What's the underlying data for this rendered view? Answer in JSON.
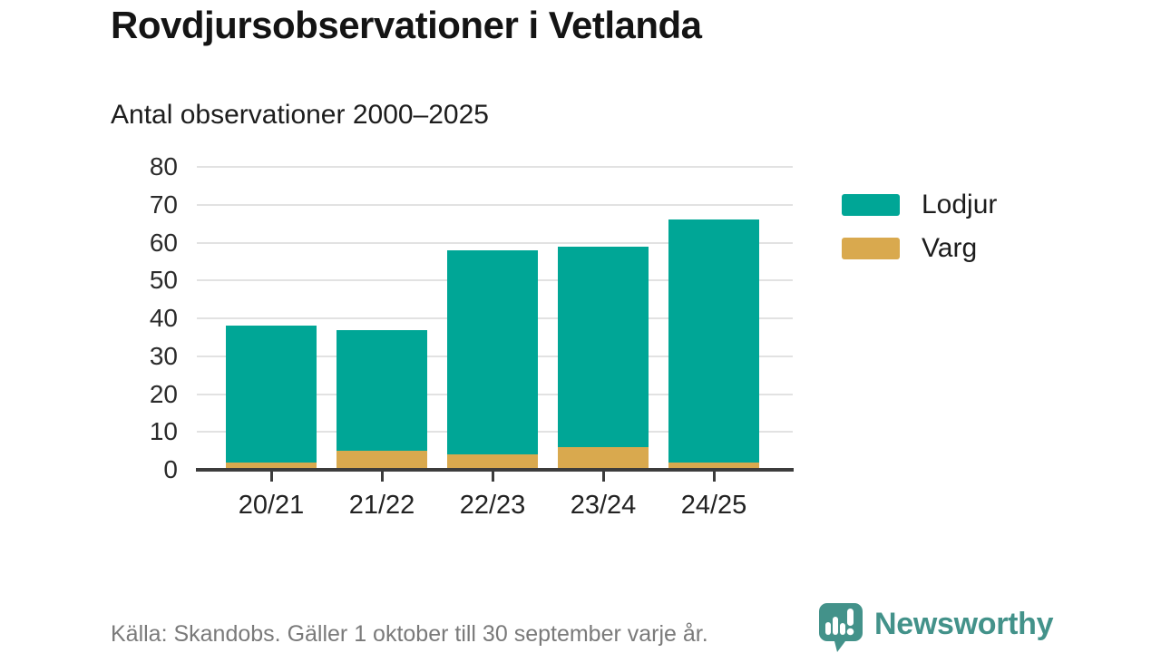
{
  "title": "Rovdjursobservationer i Vetlanda",
  "subtitle": "Antal observationer 2000–2025",
  "footer": {
    "source": "Källa: Skandobs. Gäller 1 oktober till 30 september varje år."
  },
  "brand": {
    "name": "Newsworthy",
    "color": "#43928A"
  },
  "colors": {
    "lodjur": "#00A696",
    "varg": "#D9A94E",
    "gridline": "#e2e2e2",
    "axis": "#3c3c3c",
    "text": "#1d1d1d",
    "muted_text": "#7a7a7a"
  },
  "legend": [
    {
      "label": "Lodjur",
      "color": "#00A696"
    },
    {
      "label": "Varg",
      "color": "#D9A94E"
    }
  ],
  "chart_data": {
    "type": "bar",
    "stacked": true,
    "title": "Rovdjursobservationer i Vetlanda",
    "subtitle": "Antal observationer 2000–2025",
    "categories": [
      "20/21",
      "21/22",
      "22/23",
      "23/24",
      "24/25"
    ],
    "series": [
      {
        "name": "Lodjur",
        "color": "#00A696",
        "values": [
          36,
          32,
          54,
          53,
          64
        ]
      },
      {
        "name": "Varg",
        "color": "#D9A94E",
        "values": [
          2,
          5,
          4,
          6,
          2
        ]
      }
    ],
    "totals": [
      38,
      37,
      58,
      59,
      66
    ],
    "xlabel": "",
    "ylabel": "",
    "ylim": [
      0,
      80
    ],
    "yticks": [
      0,
      10,
      20,
      30,
      40,
      50,
      60,
      70,
      80
    ],
    "grid": true,
    "legend_position": "right"
  }
}
